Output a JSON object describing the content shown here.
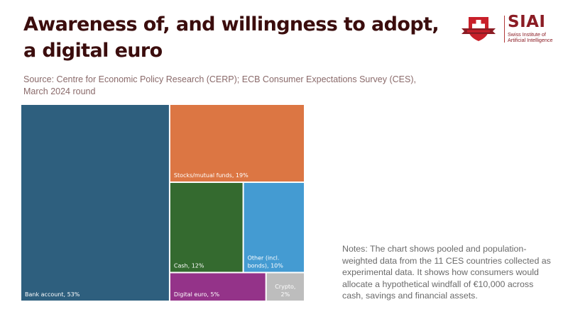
{
  "header": {
    "title": "Awareness of, and willingness to adopt, a digital euro",
    "source": "Source: Centre for Economic Policy Research (CERP); ECB Consumer Expectations Survey (CES), March 2024 round"
  },
  "logo": {
    "name": "SIAI",
    "subtitle_line1": "Swiss Institute of",
    "subtitle_line2": "Artificial Intelligence",
    "brand_color": "#8b1c24"
  },
  "notes": "Notes: The chart shows pooled and population-weighted data from the 11 CES countries collected as experimental data. It shows how consumers would allocate a hypothetical windfall of €10,000 across cash, savings and financial assets.",
  "chart_data": {
    "type": "treemap",
    "title": "Awareness of, and willingness to adopt, a digital euro",
    "unit": "%",
    "items": [
      {
        "name": "Bank account",
        "label": "Bank account, 53%",
        "value": 53,
        "color": "#2e5f7e"
      },
      {
        "name": "Stocks/mutual funds",
        "label": "Stocks/mutual funds, 19%",
        "value": 19,
        "color": "#dc7643"
      },
      {
        "name": "Cash",
        "label": "Cash, 12%",
        "value": 12,
        "color": "#346a2f"
      },
      {
        "name": "Other (incl. bonds)",
        "label_lines": [
          "Other (incl.",
          "bonds), 10%"
        ],
        "value": 10,
        "color": "#449bd2"
      },
      {
        "name": "Digital euro",
        "label": "Digital euro, 5%",
        "value": 5,
        "color": "#943389"
      },
      {
        "name": "Crypto",
        "label_lines": [
          "Crypto,",
          "2%"
        ],
        "value": 2,
        "color": "#bdbdbd"
      }
    ]
  }
}
